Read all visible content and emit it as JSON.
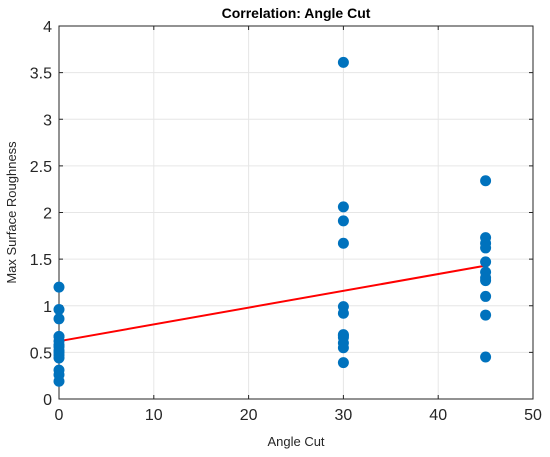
{
  "chart_data": {
    "type": "scatter",
    "title": "Correlation: Angle Cut",
    "xlabel": "Angle Cut",
    "ylabel": "Max Surface Roughness",
    "xlim": [
      0,
      50
    ],
    "ylim": [
      0,
      4
    ],
    "xticks": [
      "0",
      "10",
      "20",
      "30",
      "40",
      "50"
    ],
    "yticks": [
      "0",
      "0.5",
      "1",
      "1.5",
      "2",
      "2.5",
      "3",
      "3.5",
      "4"
    ],
    "grid": true,
    "colors": {
      "points": "#0072bd",
      "fit": "#ff0000"
    },
    "series": [
      {
        "type": "scatter",
        "x": [
          0,
          0,
          0,
          0,
          0,
          0,
          0,
          0,
          0,
          0,
          0,
          0,
          0,
          0,
          0,
          30,
          30,
          30,
          30,
          30,
          30,
          30,
          30,
          30,
          30,
          30,
          30,
          45,
          45,
          45,
          45,
          45,
          45,
          45,
          45,
          45,
          45,
          45
        ],
        "y": [
          1.2,
          0.96,
          0.86,
          0.67,
          0.62,
          0.56,
          0.52,
          0.47,
          0.44,
          0.31,
          0.26,
          0.19,
          0.67,
          0.58,
          0.5,
          3.61,
          2.06,
          1.91,
          1.67,
          0.99,
          0.92,
          0.69,
          0.66,
          0.6,
          0.55,
          0.39,
          0.68,
          2.34,
          1.73,
          1.67,
          1.62,
          1.47,
          1.36,
          1.3,
          1.27,
          1.1,
          0.9,
          0.45
        ]
      },
      {
        "type": "line",
        "x": [
          0,
          45
        ],
        "y": [
          0.62,
          1.43
        ]
      }
    ]
  }
}
